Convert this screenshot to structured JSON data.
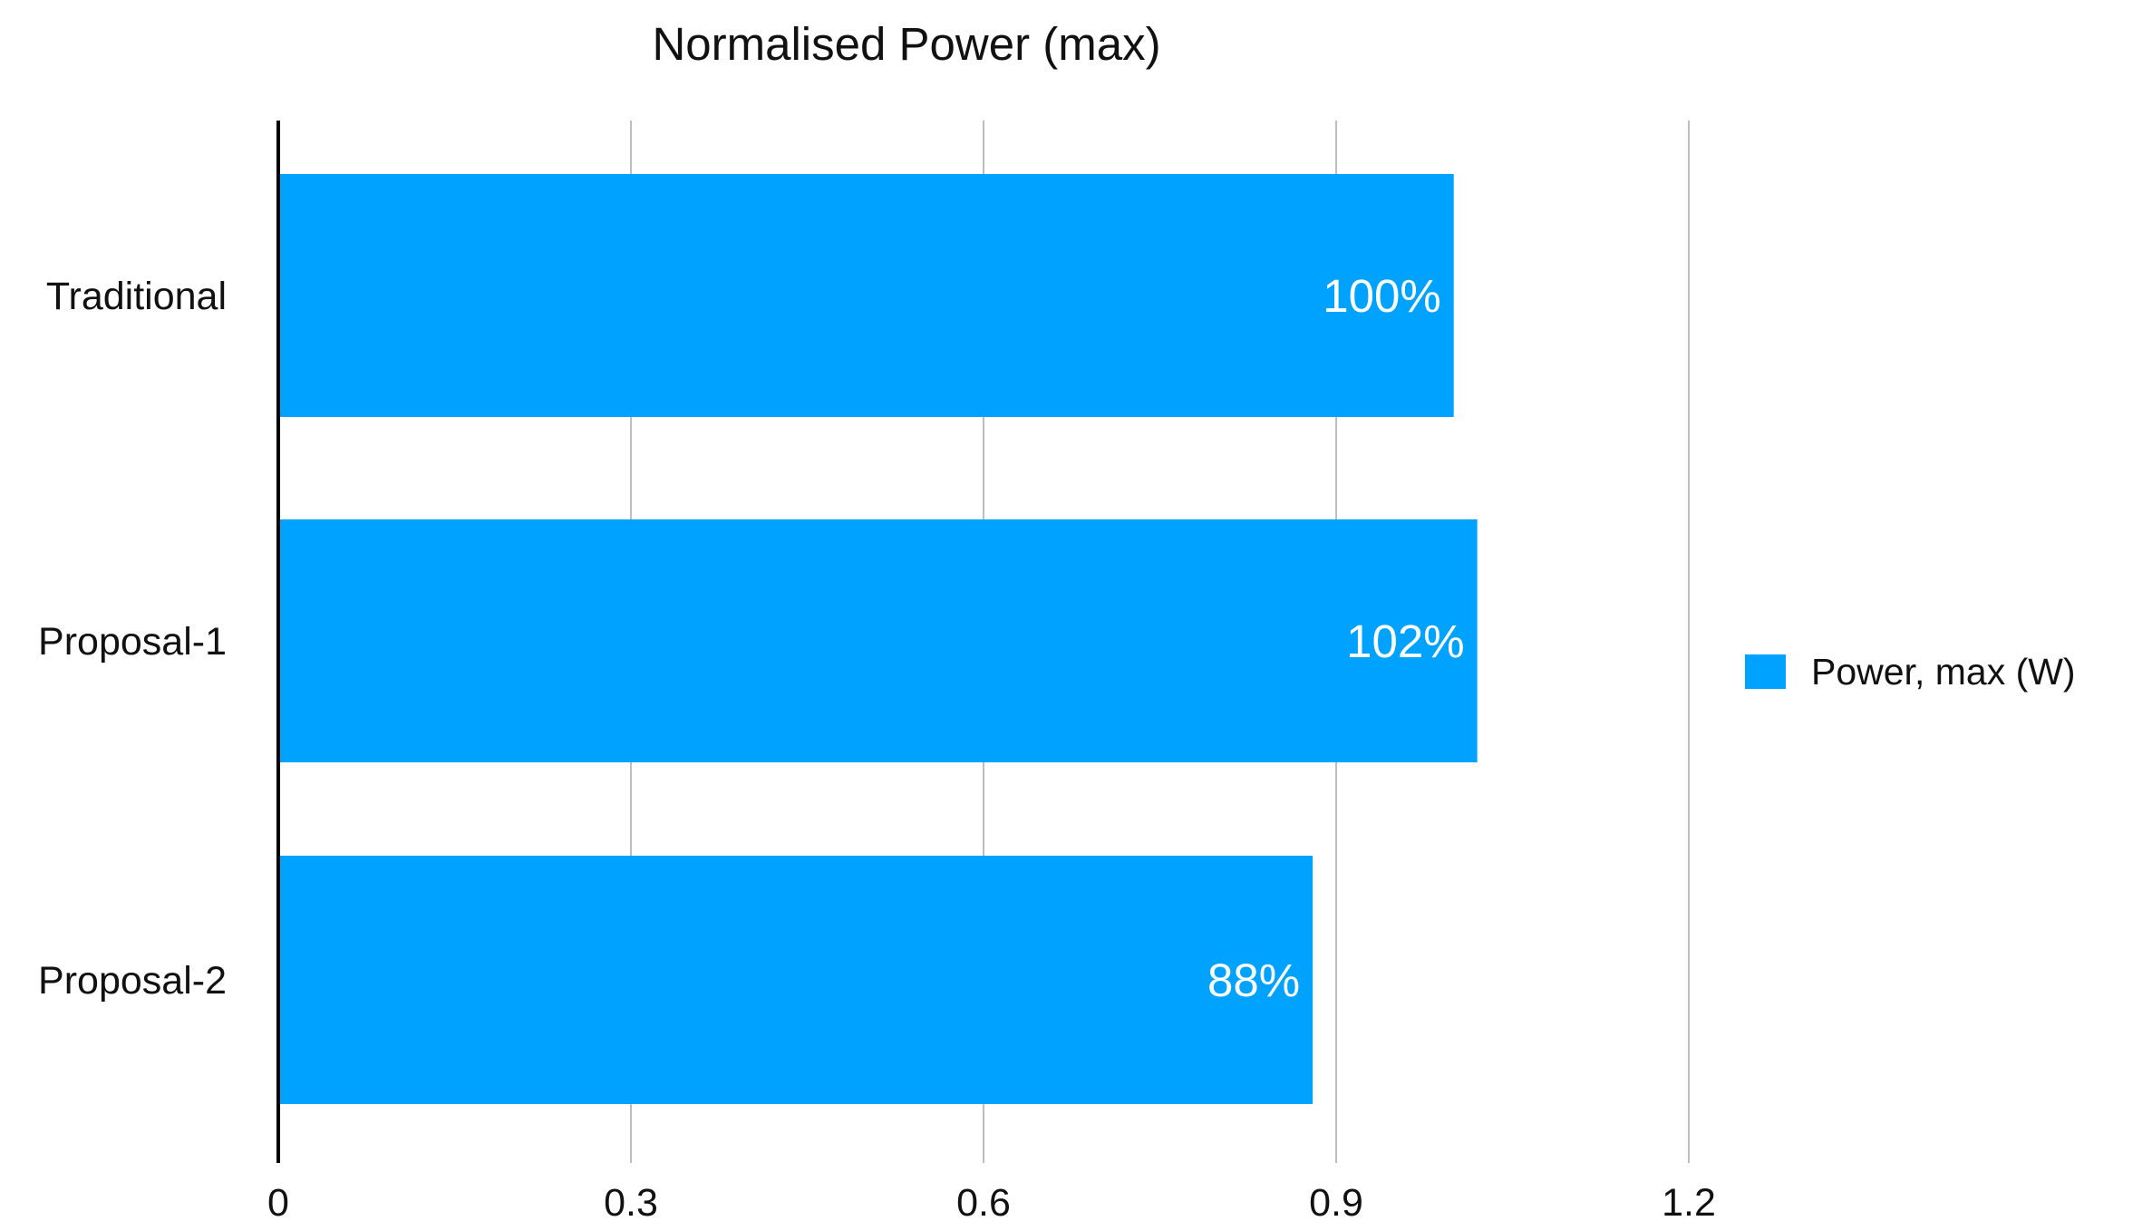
{
  "chart_data": {
    "type": "bar",
    "orientation": "horizontal",
    "title": "Normalised Power (max)",
    "categories": [
      "Traditional",
      "Proposal-1",
      "Proposal-2"
    ],
    "series": [
      {
        "name": "Power, max (W)",
        "values": [
          1.0,
          1.02,
          0.88
        ],
        "data_labels": [
          "100%",
          "102%",
          "88%"
        ],
        "color": "#00a2ff"
      }
    ],
    "xlim": [
      0,
      1.5
    ],
    "x_ticks": [
      0,
      0.3,
      0.6,
      0.9,
      1.2
    ],
    "x_tick_labels": [
      "0",
      "0.3",
      "0.6",
      "0.9",
      "1.2"
    ],
    "grid": "vertical",
    "legend_position": "right"
  }
}
